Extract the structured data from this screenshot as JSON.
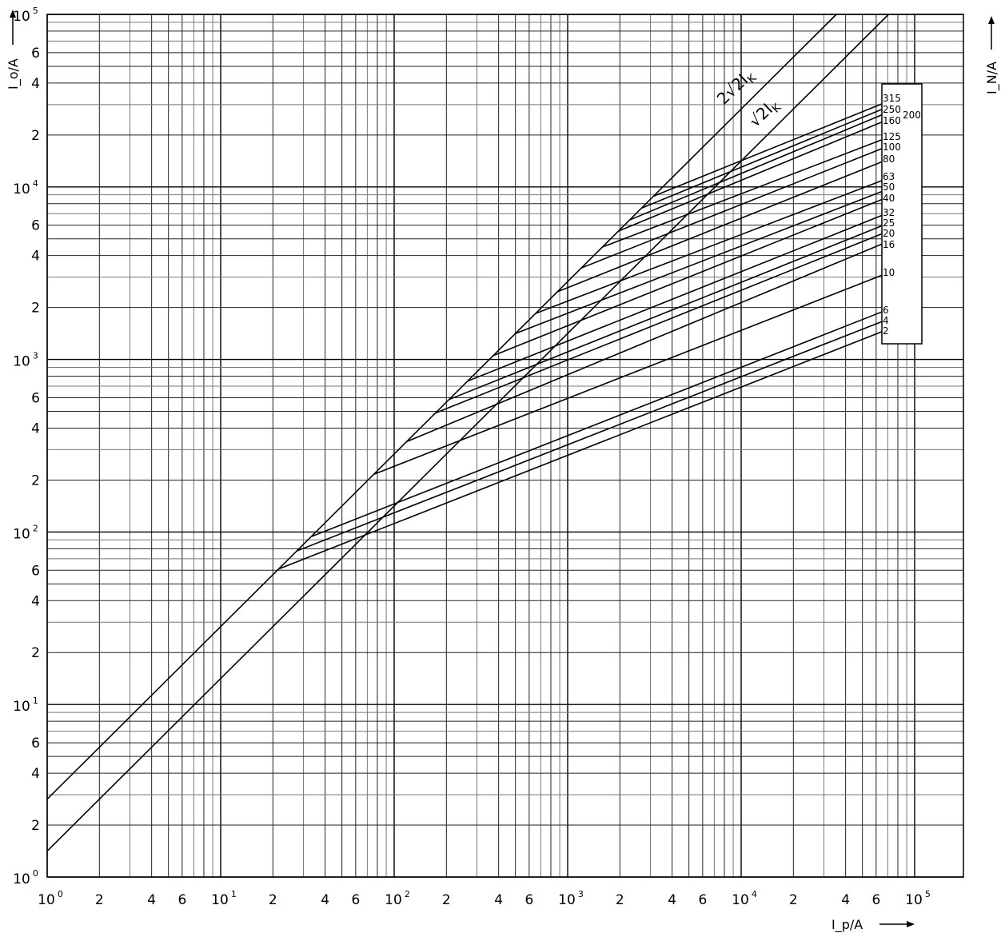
{
  "chart_data": {
    "type": "line",
    "xscale": "log",
    "yscale": "log",
    "xlim": [
      1,
      200000
    ],
    "ylim": [
      1,
      100000
    ],
    "grid": true,
    "xlabel": "I_p/A",
    "ylabel": "I_o/A",
    "y2label": "I_N/A",
    "x_tick_labels": [
      {
        "v": 1,
        "base": "10",
        "exp": "0"
      },
      {
        "v": 2,
        "t": "2"
      },
      {
        "v": 4,
        "t": "4"
      },
      {
        "v": 6,
        "t": "6"
      },
      {
        "v": 10,
        "base": "10",
        "exp": "1"
      },
      {
        "v": 20,
        "t": "2"
      },
      {
        "v": 40,
        "t": "4"
      },
      {
        "v": 60,
        "t": "6"
      },
      {
        "v": 100,
        "base": "10",
        "exp": "2"
      },
      {
        "v": 200,
        "t": "2"
      },
      {
        "v": 400,
        "t": "4"
      },
      {
        "v": 600,
        "t": "6"
      },
      {
        "v": 1000,
        "base": "10",
        "exp": "3"
      },
      {
        "v": 2000,
        "t": "2"
      },
      {
        "v": 4000,
        "t": "4"
      },
      {
        "v": 6000,
        "t": "6"
      },
      {
        "v": 10000,
        "base": "10",
        "exp": "4"
      },
      {
        "v": 20000,
        "t": "2"
      },
      {
        "v": 40000,
        "t": "4"
      },
      {
        "v": 60000,
        "t": "6"
      },
      {
        "v": 100000,
        "base": "10",
        "exp": "5"
      }
    ],
    "y_tick_labels": [
      {
        "v": 1,
        "base": "10",
        "exp": "0"
      },
      {
        "v": 2,
        "t": "2"
      },
      {
        "v": 4,
        "t": "4"
      },
      {
        "v": 6,
        "t": "6"
      },
      {
        "v": 10,
        "base": "10",
        "exp": "1"
      },
      {
        "v": 20,
        "t": "2"
      },
      {
        "v": 40,
        "t": "4"
      },
      {
        "v": 60,
        "t": "6"
      },
      {
        "v": 100,
        "base": "10",
        "exp": "2"
      },
      {
        "v": 200,
        "t": "2"
      },
      {
        "v": 400,
        "t": "4"
      },
      {
        "v": 600,
        "t": "6"
      },
      {
        "v": 1000,
        "base": "10",
        "exp": "3"
      },
      {
        "v": 2000,
        "t": "2"
      },
      {
        "v": 4000,
        "t": "4"
      },
      {
        "v": 6000,
        "t": "6"
      },
      {
        "v": 10000,
        "base": "10",
        "exp": "4"
      },
      {
        "v": 20000,
        "t": "2"
      },
      {
        "v": 40000,
        "t": "4"
      },
      {
        "v": 60000,
        "t": "6"
      },
      {
        "v": 100000,
        "base": "10",
        "exp": "5"
      }
    ],
    "reference_lines": [
      {
        "name": "2√2 I_K",
        "label_main": "2√2I",
        "label_sub": "K",
        "factor": 2.828
      },
      {
        "name": "√2 I_K",
        "label_main": "√2I",
        "label_sub": "K",
        "factor": 1.414
      }
    ],
    "series": [
      {
        "name": "315",
        "start_y": 8840,
        "end_x": 65000,
        "end_y": 30350
      },
      {
        "name": "250",
        "start_y": 7530,
        "end_x": 65000,
        "end_y": 28200
      },
      {
        "name": "200",
        "start_y": 6430,
        "end_x": 65000,
        "end_y": 26200
      },
      {
        "name": "160",
        "start_y": 5540,
        "end_x": 65000,
        "end_y": 23800
      },
      {
        "name": "125",
        "start_y": 4480,
        "end_x": 65000,
        "end_y": 18800
      },
      {
        "name": "100",
        "start_y": 3390,
        "end_x": 65000,
        "end_y": 16700
      },
      {
        "name": "80",
        "start_y": 2466,
        "end_x": 65000,
        "end_y": 14000
      },
      {
        "name": "63",
        "start_y": 1850,
        "end_x": 65000,
        "end_y": 10900
      },
      {
        "name": "50",
        "start_y": 1415,
        "end_x": 65000,
        "end_y": 9420
      },
      {
        "name": "40",
        "start_y": 1052,
        "end_x": 65000,
        "end_y": 8470
      },
      {
        "name": "32",
        "start_y": 749,
        "end_x": 65000,
        "end_y": 6850
      },
      {
        "name": "25",
        "start_y": 586,
        "end_x": 65000,
        "end_y": 5960
      },
      {
        "name": "20",
        "start_y": 489,
        "end_x": 65000,
        "end_y": 5360
      },
      {
        "name": "16",
        "start_y": 334,
        "end_x": 65000,
        "end_y": 4670
      },
      {
        "name": "10",
        "start_y": 216,
        "end_x": 65000,
        "end_y": 3080
      },
      {
        "name": "6",
        "start_y": 94,
        "end_x": 65000,
        "end_y": 1890
      },
      {
        "name": "4",
        "start_y": 77.6,
        "end_x": 65000,
        "end_y": 1660
      },
      {
        "name": "2",
        "start_y": 61,
        "end_x": 65000,
        "end_y": 1450
      }
    ]
  }
}
